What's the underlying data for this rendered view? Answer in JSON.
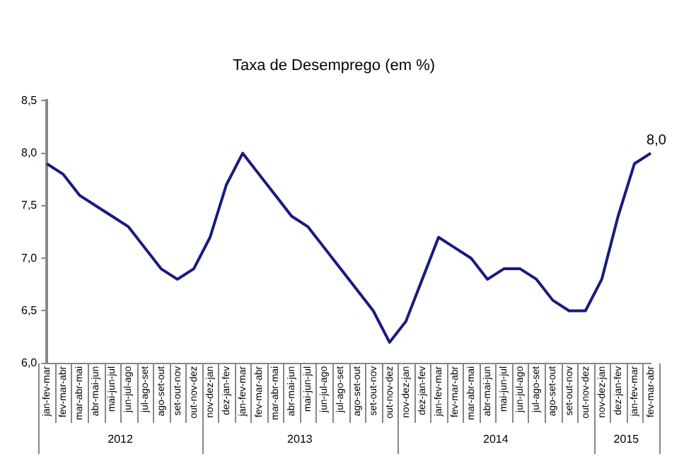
{
  "chart_data": {
    "type": "line",
    "title": "Taxa de Desemprego (em %)",
    "categories": [
      "jan-fev-mar",
      "fev-mar-abr",
      "mar-abr-mai",
      "abr-mai-jun",
      "mai-jun-jul",
      "jun-jul-ago",
      "jul-ago-set",
      "ago-set-out",
      "set-out-nov",
      "out-nov-dez",
      "nov-dez-jan",
      "dez-jan-fev",
      "jan-fev-mar",
      "fev-mar-abr",
      "mar-abr-mai",
      "abr-mai-jun",
      "mai-jun-jul",
      "jun-jul-ago",
      "jul-ago-set",
      "ago-set-out",
      "set-out-nov",
      "out-nov-dez",
      "nov-dez-jan",
      "dez-jan-fev",
      "jan-fev-mar",
      "fev-mar-abr",
      "mar-abr-mai",
      "abr-mai-jun",
      "mai-jun-jul",
      "jun-jul-ago",
      "jul-ago-set",
      "ago-set-out",
      "set-out-nov",
      "out-nov-dez",
      "nov-dez-jan",
      "dez-jan-fev",
      "jan-fev-mar",
      "fev-mar-abr"
    ],
    "series": [
      {
        "color": "#1a1a80",
        "values": [
          7.9,
          7.8,
          7.6,
          7.5,
          7.4,
          7.3,
          7.1,
          6.9,
          6.8,
          6.9,
          7.2,
          7.7,
          8.0,
          7.8,
          7.6,
          7.4,
          7.3,
          7.1,
          6.9,
          6.7,
          6.5,
          6.2,
          6.4,
          6.8,
          7.2,
          7.1,
          7.0,
          6.8,
          6.9,
          6.9,
          6.8,
          6.6,
          6.5,
          6.5,
          6.8,
          7.4,
          7.9,
          8.0
        ],
        "value_labels": [
          null,
          null,
          null,
          null,
          null,
          null,
          null,
          null,
          null,
          null,
          null,
          null,
          null,
          null,
          null,
          null,
          null,
          null,
          null,
          null,
          null,
          null,
          null,
          null,
          null,
          null,
          null,
          null,
          null,
          null,
          null,
          null,
          null,
          null,
          null,
          null,
          null,
          "8,0"
        ]
      }
    ],
    "ylim": [
      6.0,
      8.5
    ],
    "yticks": [
      {
        "value": 6.0,
        "label": "6,0"
      },
      {
        "value": 6.5,
        "label": "6,5"
      },
      {
        "value": 7.0,
        "label": "7,0"
      },
      {
        "value": 7.5,
        "label": "7,5"
      },
      {
        "value": 8.0,
        "label": "8,0"
      },
      {
        "value": 8.5,
        "label": "8,5"
      }
    ],
    "annotations": [
      "2012",
      "2013",
      "2014",
      "2015"
    ],
    "grid": false,
    "legend": false,
    "marker": "none",
    "line_style": "solid"
  }
}
